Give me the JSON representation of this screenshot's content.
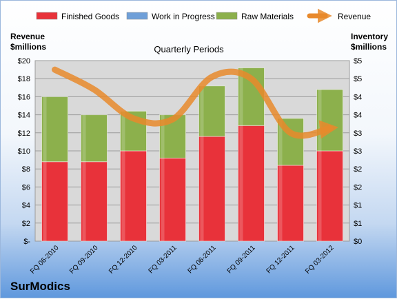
{
  "company": "SurModics",
  "chart_data": {
    "type": "bar",
    "title": "Quarterly Periods",
    "left_axis_label": [
      "Revenue",
      "$millions"
    ],
    "right_axis_label": [
      "Inventory",
      "$millions"
    ],
    "categories": [
      "FQ 06-2010",
      "FQ 09-2010",
      "FQ 12-2010",
      "FQ 03-2011",
      "FQ 06-2011",
      "FQ 09-2011",
      "FQ 12-2011",
      "FQ 03-2012"
    ],
    "inventory_series": [
      {
        "name": "Finished Goods",
        "color": "#e8323a",
        "values": [
          2.2,
          2.2,
          2.5,
          2.3,
          2.9,
          3.2,
          2.1,
          2.5
        ]
      },
      {
        "name": "Work in Progress",
        "color": "#6f9fd8",
        "values": [
          0,
          0,
          0,
          0,
          0,
          0,
          0,
          0
        ]
      },
      {
        "name": "Raw Materials",
        "color": "#8cb04c",
        "values": [
          1.8,
          1.3,
          1.1,
          1.2,
          1.4,
          1.6,
          1.3,
          1.7
        ]
      }
    ],
    "line_series": {
      "name": "Revenue",
      "color": "#e8892c",
      "values": [
        19.0,
        16.8,
        13.6,
        13.5,
        18.2,
        18.0,
        12.0,
        12.5
      ]
    },
    "left_axis": {
      "min": 0,
      "max": 20,
      "ticks": [
        "$-",
        "$2",
        "$4",
        "$6",
        "$8",
        "$10",
        "$12",
        "$14",
        "$16",
        "$18",
        "$20"
      ]
    },
    "right_axis": {
      "min": 0,
      "max": 5,
      "ticks": [
        "$0",
        "$1",
        "$1",
        "$2",
        "$2",
        "$3",
        "$3",
        "$4",
        "$4",
        "$5",
        "$5"
      ]
    },
    "legend_position": "top",
    "grid": true
  }
}
